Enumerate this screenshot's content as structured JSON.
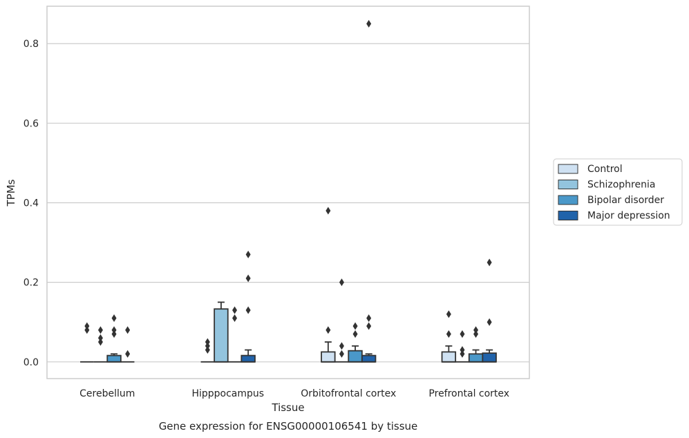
{
  "caption": "Gene expression for ENSG00000106541 by tissue",
  "colors": {
    "Control": "#cfe1f2",
    "Schizophrenia": "#93c4de",
    "Bipolar disorder": "#4a98c9",
    "Major depression": "#2163aa",
    "edge": "#333333",
    "grid": "#cccccc",
    "frame": "#cccccc"
  },
  "chart_data": {
    "type": "box",
    "xlabel": "Tissue",
    "ylabel": "TPMs",
    "ylim": [
      -0.042,
      0.894
    ],
    "yticks": [
      0.0,
      0.2,
      0.4,
      0.6,
      0.8
    ],
    "ytick_labels": [
      "0.0",
      "0.2",
      "0.4",
      "0.6",
      "0.8"
    ],
    "grid": "horizontal",
    "legend_position": "right",
    "categories": [
      "Cerebellum",
      "Hipppocampus",
      "Orbitofrontal cortex",
      "Prefrontal cortex"
    ],
    "series": [
      {
        "name": "Control",
        "boxes": [
          {
            "q1": 0,
            "median": 0,
            "q3": 0,
            "whisker_low": 0,
            "whisker_high": 0,
            "outliers": [
              0.08,
              0.09
            ]
          },
          {
            "q1": 0,
            "median": 0,
            "q3": 0,
            "whisker_low": 0,
            "whisker_high": 0,
            "outliers": [
              0.03,
              0.04,
              0.05
            ]
          },
          {
            "q1": 0,
            "median": 0,
            "q3": 0.025,
            "whisker_low": 0,
            "whisker_high": 0.05,
            "outliers": [
              0.08,
              0.38
            ]
          },
          {
            "q1": 0,
            "median": 0,
            "q3": 0.025,
            "whisker_low": 0,
            "whisker_high": 0.04,
            "outliers": [
              0.07,
              0.12
            ]
          }
        ]
      },
      {
        "name": "Schizophrenia",
        "boxes": [
          {
            "q1": 0,
            "median": 0,
            "q3": 0,
            "whisker_low": 0,
            "whisker_high": 0,
            "outliers": [
              0.05,
              0.06,
              0.08
            ]
          },
          {
            "q1": 0,
            "median": 0,
            "q3": 0.133,
            "whisker_low": 0,
            "whisker_high": 0.15,
            "outliers": []
          },
          {
            "q1": 0,
            "median": 0,
            "q3": 0,
            "whisker_low": 0,
            "whisker_high": 0,
            "outliers": [
              0.2,
              0.04,
              0.02
            ]
          },
          {
            "q1": 0,
            "median": 0,
            "q3": 0,
            "whisker_low": 0,
            "whisker_high": 0,
            "outliers": [
              0.02,
              0.03,
              0.07
            ]
          }
        ]
      },
      {
        "name": "Bipolar disorder",
        "boxes": [
          {
            "q1": 0,
            "median": 0,
            "q3": 0.016,
            "whisker_low": 0,
            "whisker_high": 0.02,
            "outliers": [
              0.07,
              0.08,
              0.11
            ]
          },
          {
            "q1": 0,
            "median": 0,
            "q3": 0,
            "whisker_low": 0,
            "whisker_high": 0,
            "outliers": [
              0.11,
              0.13
            ]
          },
          {
            "q1": 0,
            "median": 0,
            "q3": 0.028,
            "whisker_low": 0,
            "whisker_high": 0.04,
            "outliers": [
              0.07,
              0.09
            ]
          },
          {
            "q1": 0,
            "median": 0,
            "q3": 0.02,
            "whisker_low": 0,
            "whisker_high": 0.03,
            "outliers": [
              0.07,
              0.08
            ]
          }
        ]
      },
      {
        "name": "Major depression",
        "boxes": [
          {
            "q1": 0,
            "median": 0,
            "q3": 0,
            "whisker_low": 0,
            "whisker_high": 0,
            "outliers": [
              0.02,
              0.08
            ]
          },
          {
            "q1": 0,
            "median": 0,
            "q3": 0.016,
            "whisker_low": 0,
            "whisker_high": 0.03,
            "outliers": [
              0.13,
              0.21,
              0.27
            ]
          },
          {
            "q1": 0,
            "median": 0,
            "q3": 0.016,
            "whisker_low": 0,
            "whisker_high": 0.02,
            "outliers": [
              0.09,
              0.11,
              0.85
            ]
          },
          {
            "q1": 0,
            "median": 0,
            "q3": 0.022,
            "whisker_low": 0,
            "whisker_high": 0.03,
            "outliers": [
              0.1,
              0.25
            ]
          }
        ]
      }
    ]
  }
}
